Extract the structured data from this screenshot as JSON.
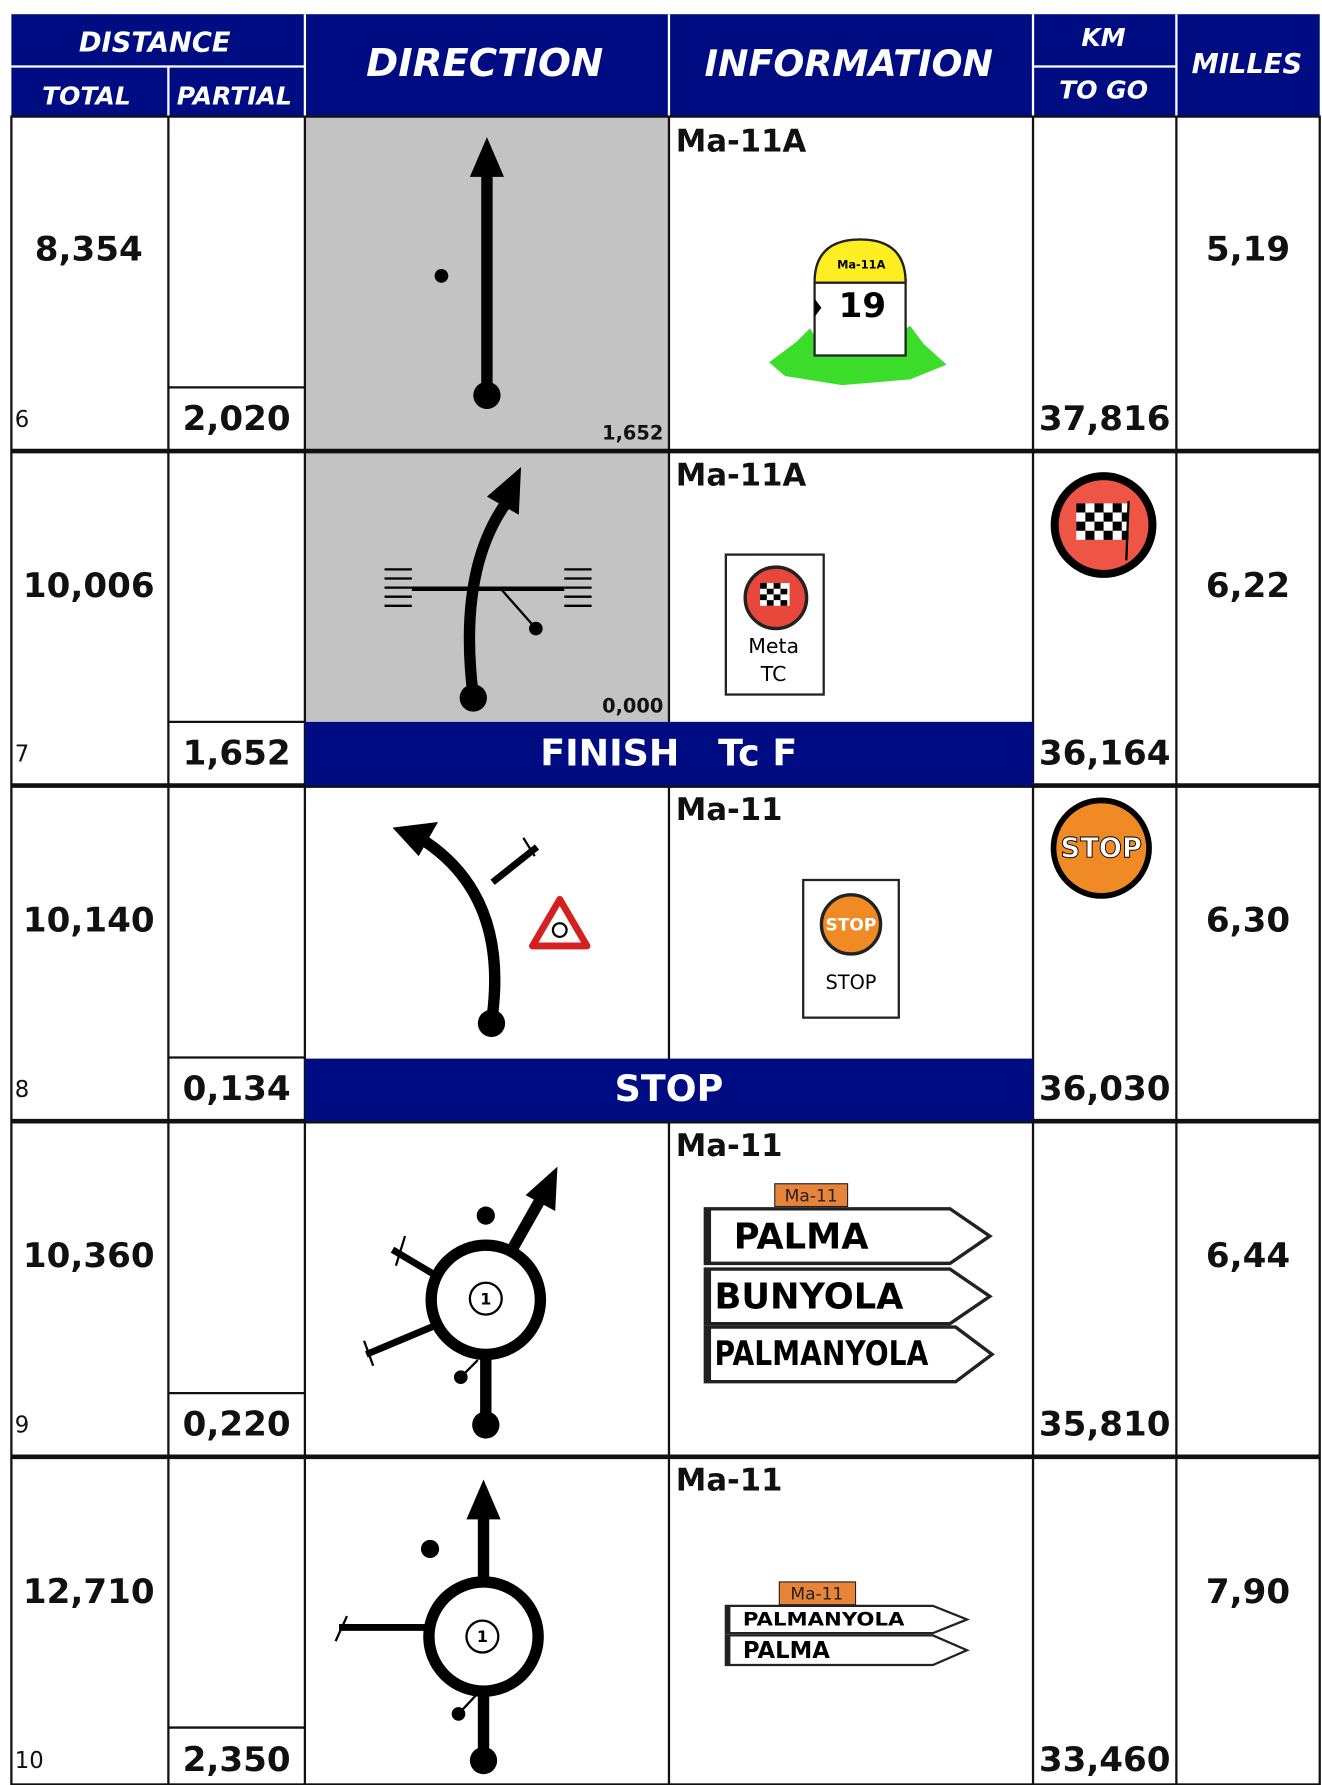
{
  "header": {
    "distance": "DISTANCE",
    "total": "TOTAL",
    "partial": "PARTIAL",
    "direction": "DIRECTION",
    "information": "INFORMATION",
    "km": "KM",
    "to_go": "TO GO",
    "milles": "MILLES"
  },
  "rows": [
    {
      "number": "6",
      "total": "8,354",
      "partial": "2,020",
      "direction_distance": "1,652",
      "road": "Ma-11A",
      "sign": {
        "road": "Ma-11A",
        "km": "19"
      },
      "km_to_go": "37,816",
      "milles": "5,19"
    },
    {
      "number": "7",
      "total": "10,006",
      "partial": "1,652",
      "direction_distance": "0,000",
      "road": "Ma-11A",
      "sign": {
        "line1": "Meta",
        "line2": "TC"
      },
      "banner": {
        "left": "FINISH",
        "right": "Tc F"
      },
      "km_to_go": "36,164",
      "milles": "6,22"
    },
    {
      "number": "8",
      "total": "10,140",
      "partial": "0,134",
      "road": "Ma-11",
      "sign": {
        "icon": "STOP",
        "caption": "STOP"
      },
      "km_icon": "STOP",
      "banner": "STOP",
      "km_to_go": "36,030",
      "milles": "6,30"
    },
    {
      "number": "9",
      "total": "10,360",
      "partial": "0,220",
      "roundabout_exit": "1",
      "road": "Ma-11",
      "sign": {
        "road": "Ma-11",
        "destinations": [
          "PALMA",
          "BUNYOLA",
          "PALMANYOLA"
        ]
      },
      "km_to_go": "35,810",
      "milles": "6,44"
    },
    {
      "number": "10",
      "total": "12,710",
      "partial": "2,350",
      "roundabout_exit": "1",
      "road": "Ma-11",
      "sign": {
        "road": "Ma-11",
        "destinations": [
          "PALMANYOLA",
          "PALMA"
        ]
      },
      "km_to_go": "33,460",
      "milles": "7,90"
    }
  ]
}
